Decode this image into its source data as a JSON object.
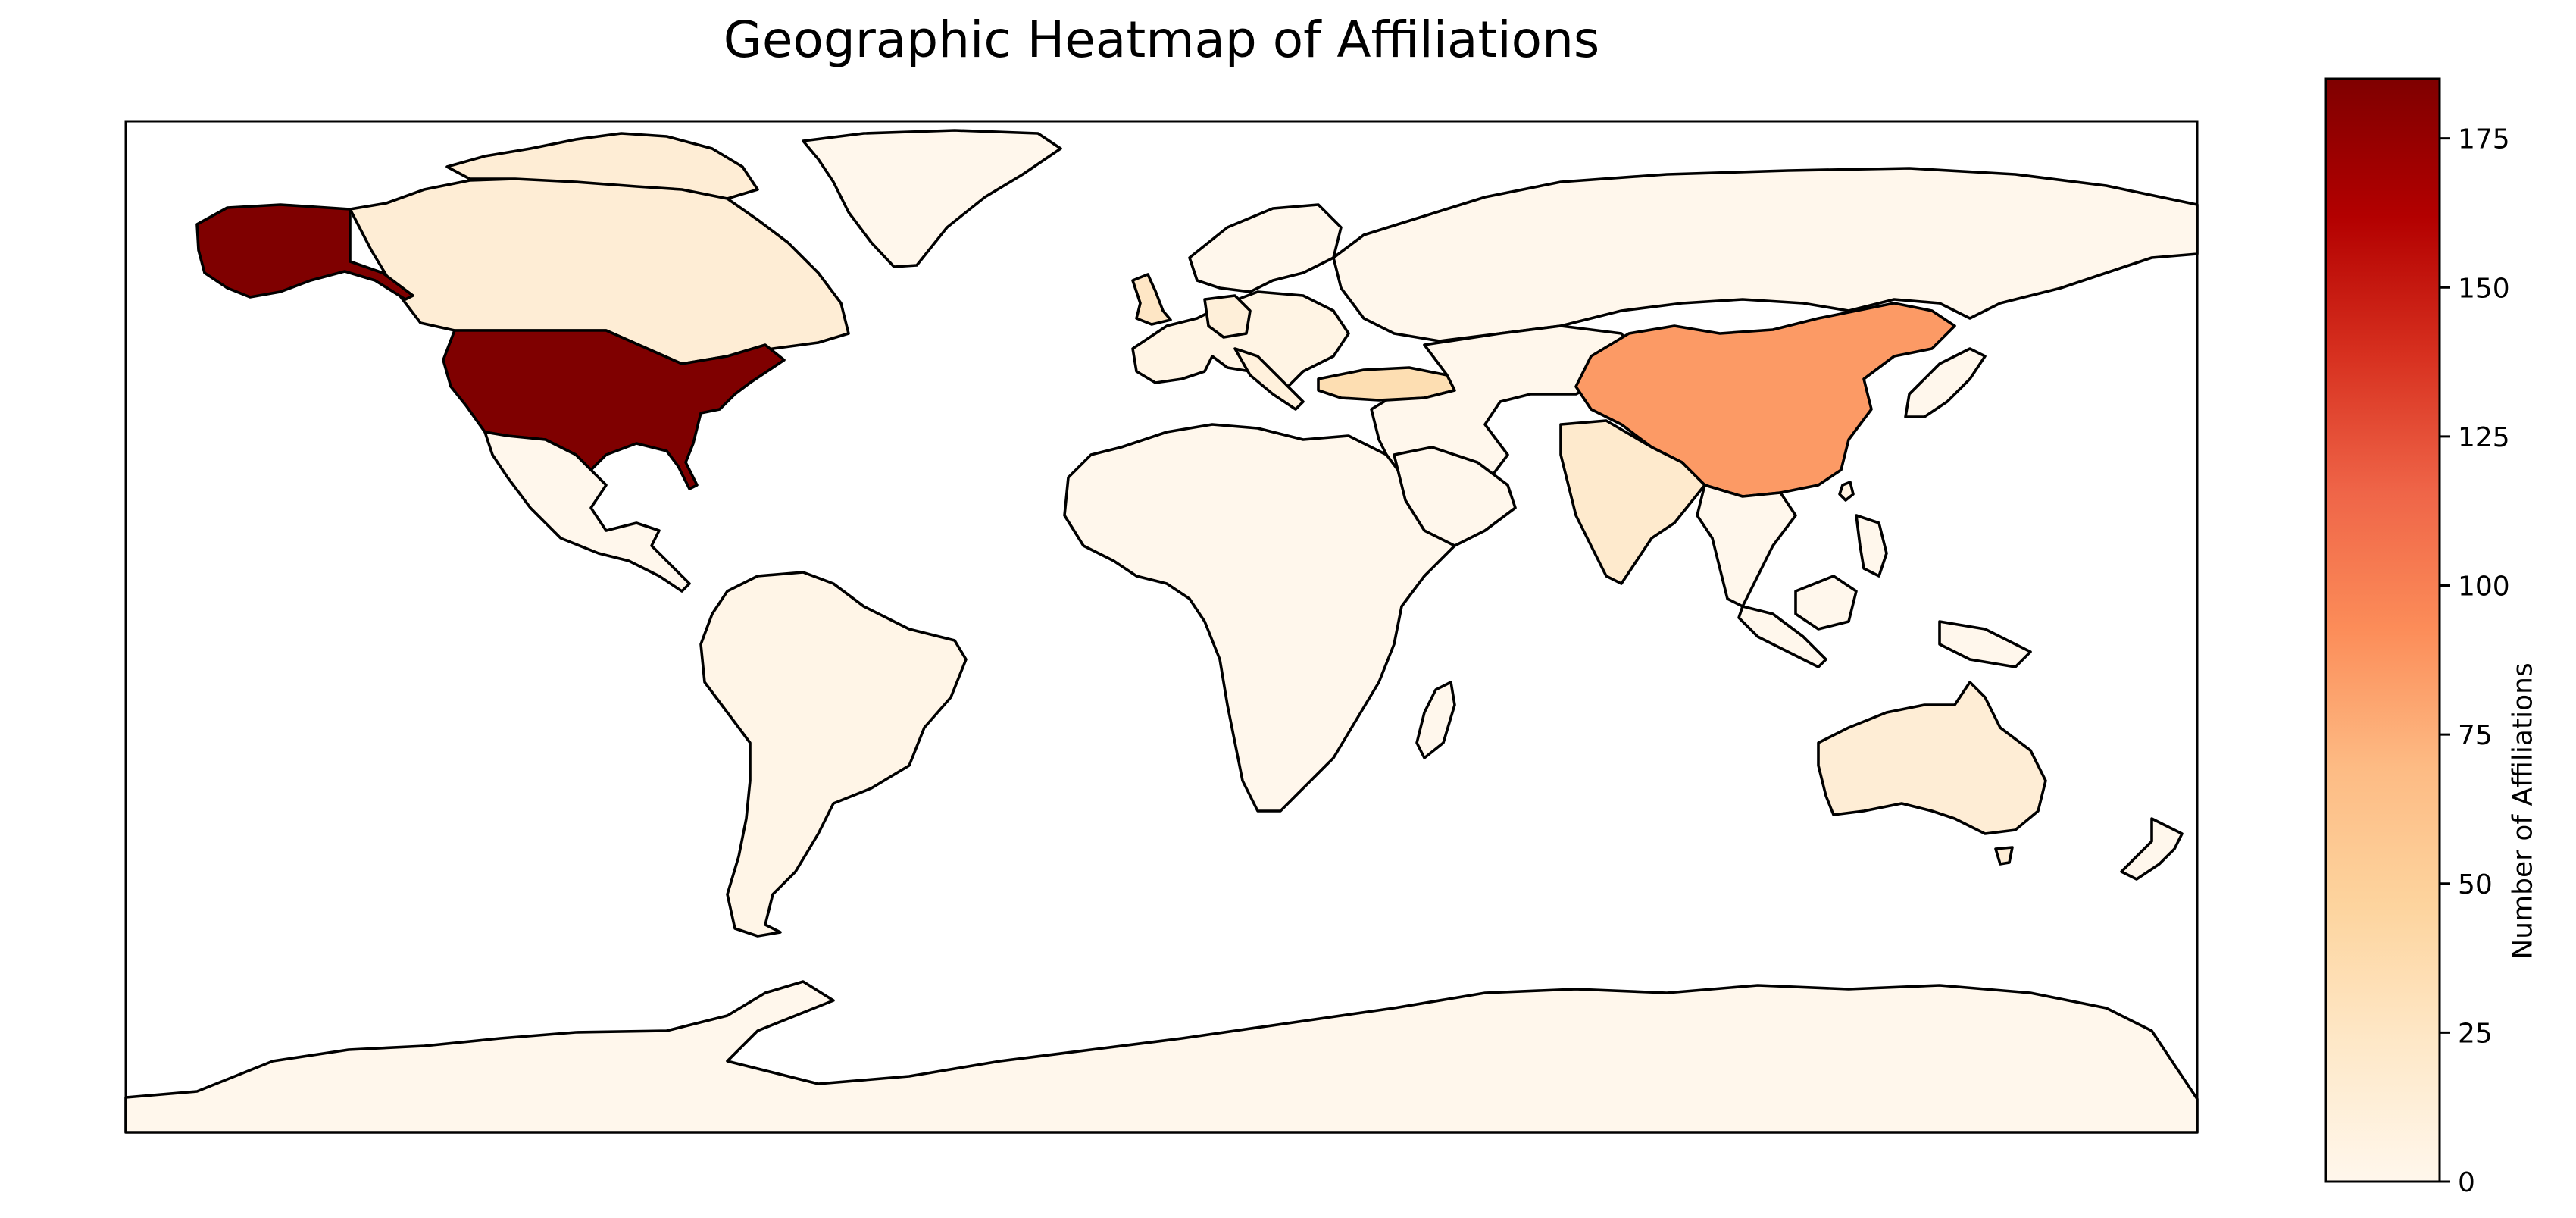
{
  "chart_data": {
    "type": "heatmap",
    "title": "Geographic Heatmap of Affiliations",
    "colorbar": {
      "label": "Number of Affiliations",
      "min": 0,
      "max": 185,
      "ticks": [
        0,
        25,
        50,
        75,
        100,
        125,
        150,
        175
      ],
      "colormap": "OrRd",
      "stops": [
        "#fff7ec",
        "#fee8c8",
        "#fdd49e",
        "#fdbb84",
        "#fc8d59",
        "#ef6548",
        "#d7301f",
        "#b30000",
        "#7f0000"
      ]
    },
    "regions": [
      {
        "name": "United States",
        "value": 185
      },
      {
        "name": "China",
        "value": 86
      },
      {
        "name": "Turkey",
        "value": 35
      },
      {
        "name": "India",
        "value": 20
      },
      {
        "name": "United Kingdom",
        "value": 25
      },
      {
        "name": "Germany",
        "value": 12
      },
      {
        "name": "Italy",
        "value": 10
      },
      {
        "name": "France",
        "value": 5
      },
      {
        "name": "Spain",
        "value": 5
      },
      {
        "name": "Canada",
        "value": 15
      },
      {
        "name": "Australia",
        "value": 15
      },
      {
        "name": "Taiwan",
        "value": 8
      },
      {
        "name": "Brazil",
        "value": 3
      },
      {
        "name": "Russia",
        "value": 0
      },
      {
        "name": "Greenland",
        "value": 0
      },
      {
        "name": "Mexico",
        "value": 0
      },
      {
        "name": "Antarctica",
        "value": 0
      }
    ]
  }
}
